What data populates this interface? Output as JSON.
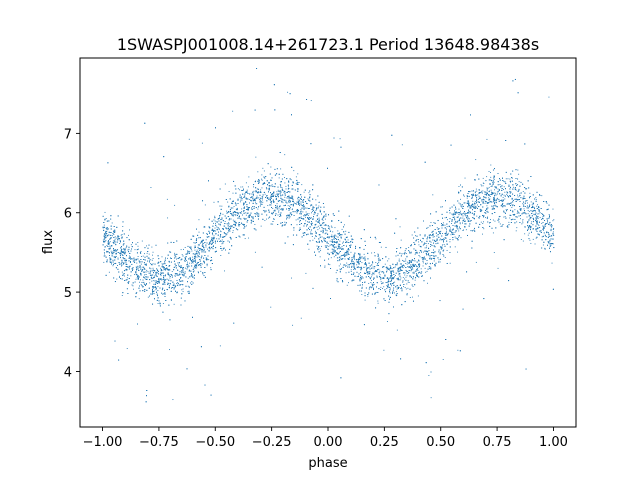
{
  "chart_data": {
    "type": "scatter",
    "title": "1SWASPJ001008.14+261723.1 Period 13648.98438s",
    "xlabel": "phase",
    "ylabel": "flux",
    "xlim": [
      -1.1,
      1.1
    ],
    "ylim": [
      3.3,
      7.95
    ],
    "xticks": [
      -1.0,
      -0.75,
      -0.5,
      -0.25,
      0.0,
      0.25,
      0.5,
      0.75,
      1.0
    ],
    "xtick_labels": [
      "−1.00",
      "−0.75",
      "−0.50",
      "−0.25",
      "0.00",
      "0.25",
      "0.50",
      "0.75",
      "1.00"
    ],
    "yticks": [
      4,
      5,
      6,
      7
    ],
    "ytick_labels": [
      "4",
      "5",
      "6",
      "7"
    ],
    "grid": false,
    "point_color": "#1f77b4",
    "model": {
      "form": "sinusoid",
      "mean_flux": 5.7,
      "amplitude": 0.5,
      "peak_phase": [
        -0.25,
        0.75
      ],
      "trough_phase": [
        -0.75,
        0.25
      ],
      "scatter_sigma": 0.17,
      "n_points": 9000
    },
    "series": [
      {
        "points": [
          [
            -1.0,
            5.7
          ],
          [
            -0.95,
            5.55
          ],
          [
            -0.9,
            5.4
          ],
          [
            -0.85,
            5.27
          ],
          [
            -0.8,
            5.2
          ],
          [
            -0.75,
            5.2
          ],
          [
            -0.7,
            5.22
          ],
          [
            -0.65,
            5.3
          ],
          [
            -0.6,
            5.45
          ],
          [
            -0.55,
            5.6
          ],
          [
            -0.5,
            5.72
          ],
          [
            -0.45,
            5.88
          ],
          [
            -0.4,
            6.02
          ],
          [
            -0.35,
            6.13
          ],
          [
            -0.3,
            6.2
          ],
          [
            -0.25,
            6.2
          ],
          [
            -0.2,
            6.17
          ],
          [
            -0.15,
            6.1
          ],
          [
            -0.1,
            5.98
          ],
          [
            -0.05,
            5.85
          ],
          [
            0.0,
            5.7
          ],
          [
            0.05,
            5.55
          ],
          [
            0.1,
            5.4
          ],
          [
            0.15,
            5.27
          ],
          [
            0.2,
            5.2
          ],
          [
            0.25,
            5.2
          ],
          [
            0.3,
            5.22
          ],
          [
            0.35,
            5.3
          ],
          [
            0.4,
            5.45
          ],
          [
            0.45,
            5.6
          ],
          [
            0.5,
            5.72
          ],
          [
            0.55,
            5.88
          ],
          [
            0.6,
            6.02
          ],
          [
            0.65,
            6.13
          ],
          [
            0.7,
            6.2
          ],
          [
            0.75,
            6.2
          ],
          [
            0.8,
            6.17
          ],
          [
            0.85,
            6.1
          ],
          [
            0.9,
            5.98
          ],
          [
            0.95,
            5.85
          ],
          [
            1.0,
            5.7
          ]
        ]
      }
    ]
  }
}
